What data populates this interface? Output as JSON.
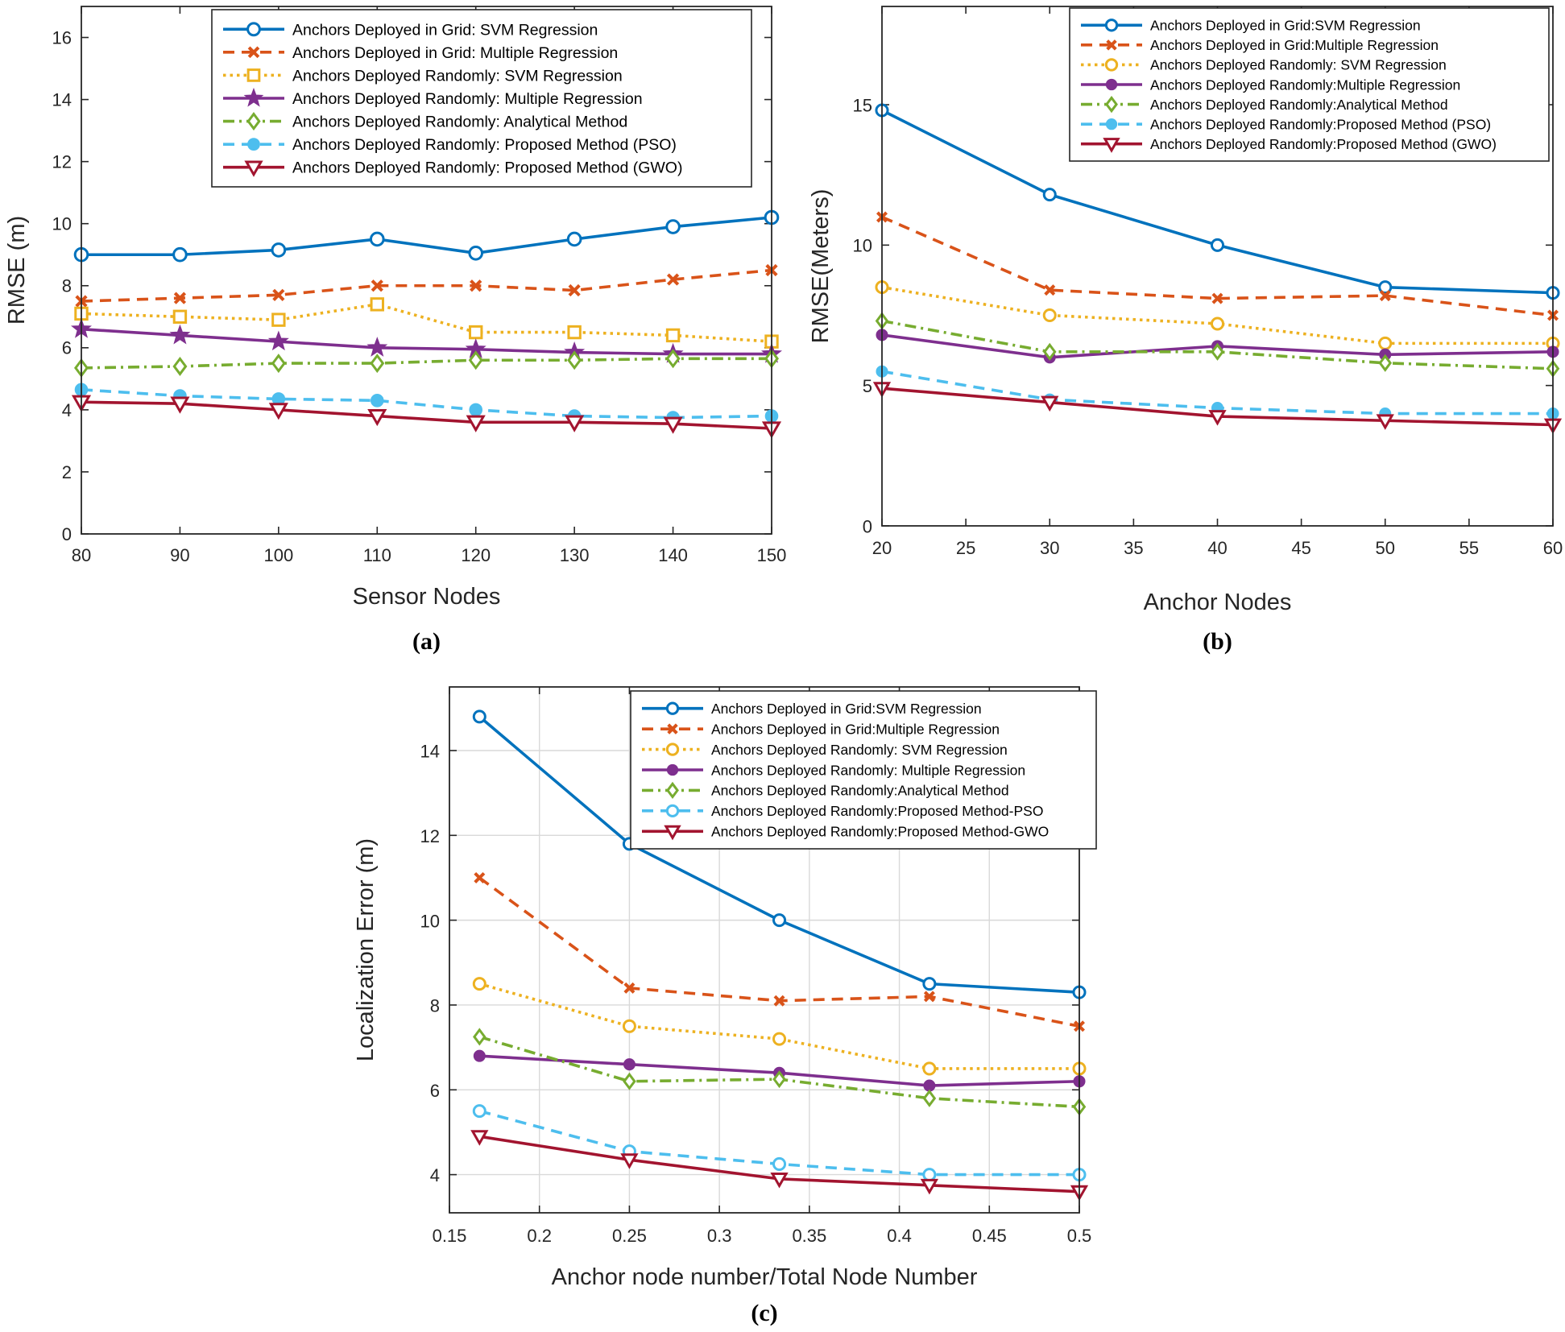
{
  "chart_data": [
    {
      "type": "line",
      "panel_label": "(a)",
      "xlabel": "Sensor Nodes",
      "ylabel": "RMSE (m)",
      "x": [
        80,
        90,
        100,
        110,
        120,
        130,
        140,
        150
      ],
      "xlim": [
        80,
        150
      ],
      "ylim": [
        0,
        17
      ],
      "xticks": [
        80,
        90,
        100,
        110,
        120,
        130,
        140,
        150
      ],
      "yticks": [
        0,
        2,
        4,
        6,
        8,
        10,
        12,
        14,
        16
      ],
      "grid": false,
      "legend_position": "top-right",
      "series": [
        {
          "name": "Anchors Deployed in Grid: SVM Regression",
          "color": "#0072BD",
          "marker": "circle",
          "dash": "solid",
          "values": [
            9.0,
            9.0,
            9.15,
            9.5,
            9.05,
            9.5,
            9.9,
            10.2
          ]
        },
        {
          "name": "Anchors Deployed in Grid: Multiple Regression",
          "color": "#D95319",
          "marker": "x",
          "dash": "dashed",
          "values": [
            7.5,
            7.6,
            7.7,
            8.0,
            8.0,
            7.85,
            8.2,
            8.5
          ]
        },
        {
          "name": "Anchors Deployed Randomly: SVM Regression",
          "color": "#EDB120",
          "marker": "square",
          "dash": "dotted",
          "values": [
            7.1,
            7.0,
            6.9,
            7.4,
            6.5,
            6.5,
            6.4,
            6.2
          ]
        },
        {
          "name": "Anchors Deployed Randomly: Multiple Regression",
          "color": "#7E2F8E",
          "marker": "star",
          "dash": "solid",
          "values": [
            6.6,
            6.4,
            6.2,
            6.0,
            5.95,
            5.85,
            5.8,
            5.8
          ]
        },
        {
          "name": "Anchors Deployed Randomly: Analytical Method",
          "color": "#77AC30",
          "marker": "diamond",
          "dash": "dashdot",
          "values": [
            5.35,
            5.4,
            5.5,
            5.5,
            5.6,
            5.6,
            5.65,
            5.65
          ]
        },
        {
          "name": "Anchors Deployed Randomly: Proposed Method (PSO)",
          "color": "#4DBEEE",
          "marker": "filled-circle",
          "dash": "dashed",
          "values": [
            4.65,
            4.45,
            4.35,
            4.3,
            4.0,
            3.8,
            3.75,
            3.8
          ]
        },
        {
          "name": "Anchors Deployed Randomly: Proposed Method (GWO)",
          "color": "#A2142F",
          "marker": "triangle-down",
          "dash": "solid",
          "values": [
            4.25,
            4.2,
            4.0,
            3.8,
            3.6,
            3.6,
            3.55,
            3.4
          ]
        }
      ]
    },
    {
      "type": "line",
      "panel_label": "(b)",
      "xlabel": "Anchor Nodes",
      "ylabel": "RMSE(Meters)",
      "x": [
        20,
        30,
        40,
        50,
        60
      ],
      "xlim": [
        20,
        60
      ],
      "ylim": [
        0,
        18.5
      ],
      "xticks": [
        20,
        25,
        30,
        35,
        40,
        45,
        50,
        55,
        60
      ],
      "yticks": [
        0,
        5,
        10,
        15
      ],
      "grid": false,
      "legend_position": "top-right",
      "series": [
        {
          "name": "Anchors Deployed in Grid:SVM Regression",
          "color": "#0072BD",
          "marker": "circle",
          "dash": "solid",
          "values": [
            14.8,
            11.8,
            10.0,
            8.5,
            8.3
          ]
        },
        {
          "name": "Anchors Deployed in Grid:Multiple Regression",
          "color": "#D95319",
          "marker": "x",
          "dash": "dashed",
          "values": [
            11.0,
            8.4,
            8.1,
            8.2,
            7.5
          ]
        },
        {
          "name": "Anchors Deployed Randomly: SVM Regression",
          "color": "#EDB120",
          "marker": "circle",
          "dash": "dotted",
          "values": [
            8.5,
            7.5,
            7.2,
            6.5,
            6.5
          ]
        },
        {
          "name": "Anchors Deployed Randomly:Multiple Regression",
          "color": "#7E2F8E",
          "marker": "filled-circle",
          "dash": "solid",
          "values": [
            6.8,
            6.0,
            6.4,
            6.1,
            6.2
          ]
        },
        {
          "name": "Anchors Deployed Randomly:Analytical Method",
          "color": "#77AC30",
          "marker": "diamond",
          "dash": "dashdot",
          "values": [
            7.3,
            6.2,
            6.2,
            5.8,
            5.6
          ]
        },
        {
          "name": "Anchors Deployed Randomly:Proposed Method (PSO)",
          "color": "#4DBEEE",
          "marker": "filled-circle",
          "dash": "dashed",
          "values": [
            5.5,
            4.5,
            4.2,
            4.0,
            4.0
          ]
        },
        {
          "name": "Anchors Deployed Randomly:Proposed Method (GWO)",
          "color": "#A2142F",
          "marker": "triangle-down",
          "dash": "solid",
          "values": [
            4.9,
            4.4,
            3.9,
            3.75,
            3.6
          ]
        }
      ]
    },
    {
      "type": "line",
      "panel_label": "(c)",
      "xlabel": "Anchor node number/Total Node Number",
      "ylabel": "Localization Error (m)",
      "x": [
        0.1667,
        0.25,
        0.3333,
        0.4167,
        0.5
      ],
      "xlim": [
        0.15,
        0.5
      ],
      "ylim": [
        3.1,
        15.5
      ],
      "xticks": [
        0.15,
        0.2,
        0.25,
        0.3,
        0.35,
        0.4,
        0.45,
        0.5
      ],
      "xtick_labels": [
        "0.15",
        "0.2",
        "0.25",
        "0.3",
        "0.35",
        "0.4",
        "0.45",
        "0.5"
      ],
      "yticks": [
        4,
        6,
        8,
        10,
        12,
        14
      ],
      "grid": true,
      "legend_position": "top-right",
      "series": [
        {
          "name": "Anchors Deployed in Grid:SVM Regression",
          "color": "#0072BD",
          "marker": "circle",
          "dash": "solid",
          "values": [
            14.8,
            11.8,
            10.0,
            8.5,
            8.3
          ]
        },
        {
          "name": "Anchors Deployed in Grid:Multiple Regression",
          "color": "#D95319",
          "marker": "x",
          "dash": "dashed",
          "values": [
            11.0,
            8.4,
            8.1,
            8.2,
            7.5
          ]
        },
        {
          "name": "Anchors Deployed Randomly: SVM Regression",
          "color": "#EDB120",
          "marker": "circle",
          "dash": "dotted",
          "values": [
            8.5,
            7.5,
            7.2,
            6.5,
            6.5
          ]
        },
        {
          "name": "Anchors Deployed Randomly: Multiple Regression",
          "color": "#7E2F8E",
          "marker": "filled-circle",
          "dash": "solid",
          "values": [
            6.8,
            6.6,
            6.4,
            6.1,
            6.2
          ]
        },
        {
          "name": "Anchors Deployed Randomly:Analytical Method",
          "color": "#77AC30",
          "marker": "diamond",
          "dash": "dashdot",
          "values": [
            7.25,
            6.2,
            6.25,
            5.8,
            5.6
          ]
        },
        {
          "name": "Anchors Deployed Randomly:Proposed Method-PSO",
          "color": "#4DBEEE",
          "marker": "circle",
          "dash": "dashed",
          "values": [
            5.5,
            4.55,
            4.25,
            4.0,
            4.0
          ]
        },
        {
          "name": "Anchors Deployed Randomly:Proposed Method-GWO",
          "color": "#A2142F",
          "marker": "triangle-down",
          "dash": "solid",
          "values": [
            4.9,
            4.35,
            3.9,
            3.75,
            3.6
          ]
        }
      ]
    }
  ]
}
